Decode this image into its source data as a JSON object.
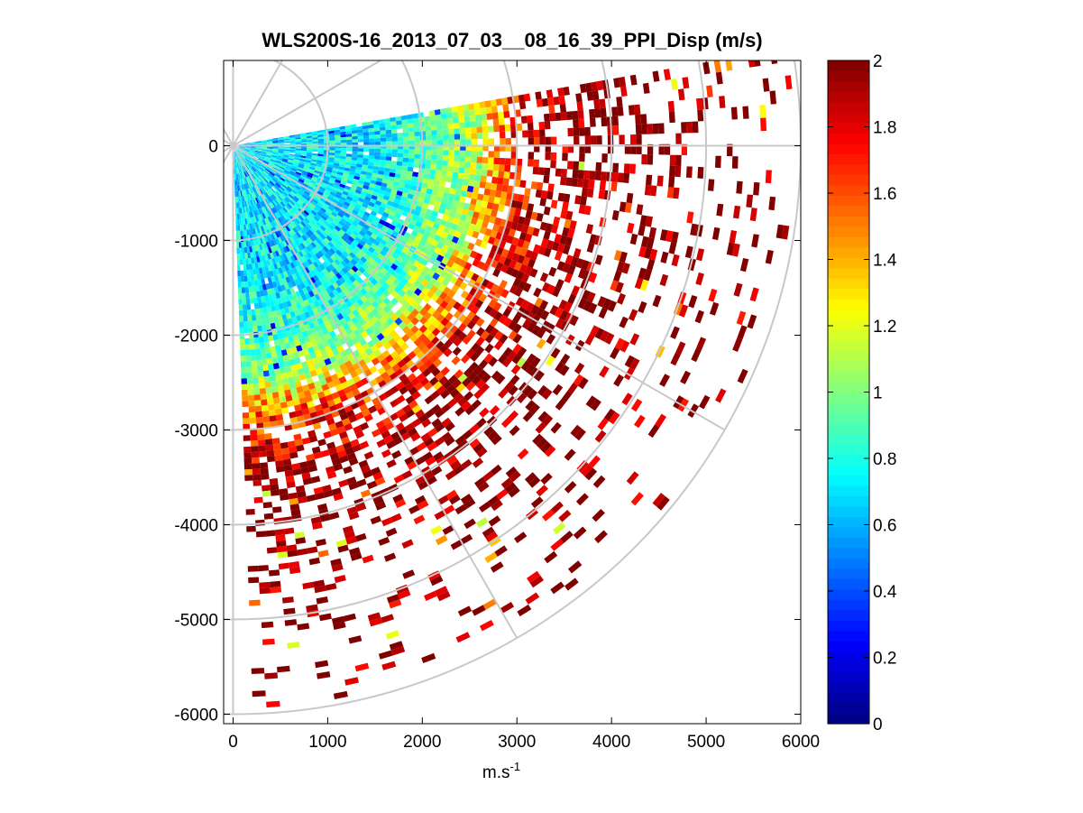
{
  "figure": {
    "title": "WLS200S-16_2013_07_03__08_16_39_PPI_Disp (m/s)"
  },
  "chart_data": {
    "type": "heatmap",
    "projection": "polar-ppi-sector",
    "title": "WLS200S-16_2013_07_03__08_16_39_PPI_Disp (m/s)",
    "xlabel": "m.s",
    "xlabel_superscript": "-1",
    "ylabel": "",
    "xlim": [
      -100,
      6000
    ],
    "ylim": [
      -6100,
      900
    ],
    "x_ticks": [
      0,
      1000,
      2000,
      3000,
      4000,
      5000,
      6000
    ],
    "x_tick_labels": [
      "0",
      "1000",
      "2000",
      "3000",
      "4000",
      "5000",
      "6000"
    ],
    "y_ticks": [
      0,
      -1000,
      -2000,
      -3000,
      -4000,
      -5000,
      -6000
    ],
    "y_tick_labels": [
      "0",
      "-1000",
      "-2000",
      "-3000",
      "-4000",
      "-5000",
      "-6000"
    ],
    "grid": "polar",
    "polar_grid_rings_m": [
      1000,
      2000,
      3000,
      4000,
      5000,
      6000
    ],
    "polar_grid_spokes_deg": [
      0,
      30,
      60,
      90,
      120,
      150,
      180,
      210,
      240,
      270,
      300,
      330
    ],
    "sector_azimuth_deg": [
      -88,
      10
    ],
    "max_range_m": 5900,
    "colorbar": {
      "colormap": "jet",
      "placement": "right",
      "clim": [
        0,
        2
      ],
      "ticks": [
        0,
        0.2,
        0.4,
        0.6,
        0.8,
        1,
        1.2,
        1.4,
        1.6,
        1.8,
        2
      ],
      "tick_labels": [
        "0",
        "0.2",
        "0.4",
        "0.6",
        "0.8",
        "1",
        "1.2",
        "1.4",
        "1.6",
        "1.8",
        "2"
      ]
    },
    "value_trend": [
      {
        "range_m": 0,
        "value": 0.7
      },
      {
        "range_m": 1500,
        "value": 0.72
      },
      {
        "range_m": 2000,
        "value": 0.85
      },
      {
        "range_m": 2500,
        "value": 1.1
      },
      {
        "range_m": 3000,
        "value": 1.7
      },
      {
        "range_m": 3500,
        "value": 2.0
      },
      {
        "range_m": 6000,
        "value": 2.0
      }
    ],
    "coverage_trend": [
      {
        "range_m": 0,
        "fraction": 1.0
      },
      {
        "range_m": 2500,
        "fraction": 0.97
      },
      {
        "range_m": 3000,
        "fraction": 0.75
      },
      {
        "range_m": 4000,
        "fraction": 0.4
      },
      {
        "range_m": 5000,
        "fraction": 0.18
      },
      {
        "range_m": 6000,
        "fraction": 0.08
      }
    ]
  }
}
